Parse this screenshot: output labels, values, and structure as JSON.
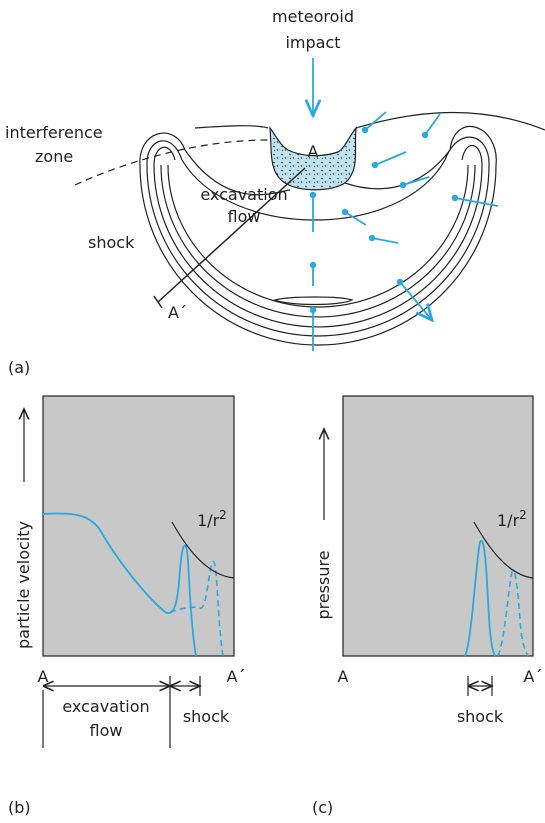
{
  "panel_a": {
    "label": "(a)",
    "impact": [
      "meteoroid",
      "impact"
    ],
    "interference_zone": [
      "interference",
      "zone"
    ],
    "point_a": "A",
    "excavation_flow": [
      "excavation",
      "flow"
    ],
    "shock": "shock",
    "point_a_prime": "A´"
  },
  "panel_b": {
    "label": "(b)",
    "y_label": "particle velocity",
    "curve_label": {
      "base": "1/r",
      "exponent": "2"
    },
    "x_start": "A",
    "x_end": "A´",
    "excavation_flow": [
      "excavation",
      "flow"
    ],
    "shock": "shock"
  },
  "panel_c": {
    "label": "(c)",
    "y_label": "pressure",
    "curve_label": {
      "base": "1/r",
      "exponent": "2"
    },
    "x_start": "A",
    "x_end": "A´",
    "shock": "shock"
  }
}
